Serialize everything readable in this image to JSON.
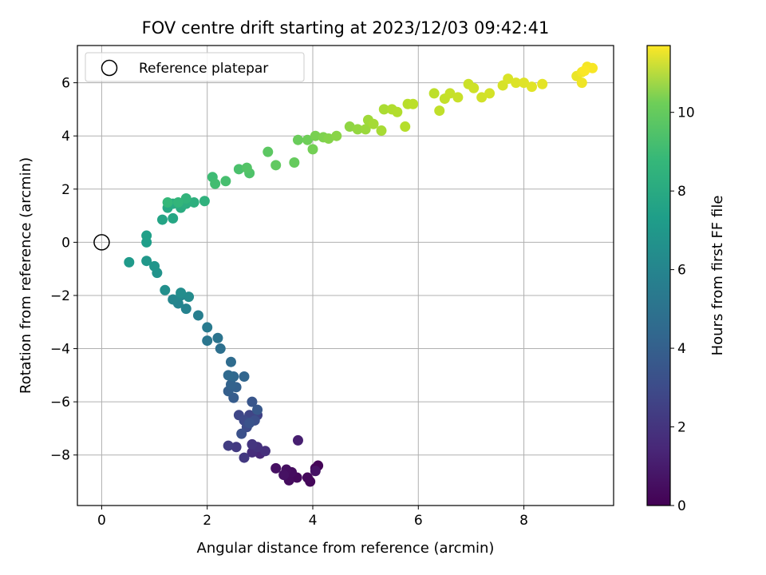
{
  "chart_data": {
    "type": "scatter",
    "title": "FOV centre drift starting at 2023/12/03 09:42:41",
    "xlabel": "Angular distance from reference (arcmin)",
    "ylabel": "Rotation from reference (arcmin)",
    "xlim": [
      -0.46,
      9.7
    ],
    "ylim": [
      -9.9,
      7.4
    ],
    "xticks": [
      0,
      2,
      4,
      6,
      8
    ],
    "yticks": [
      -8,
      -6,
      -4,
      -2,
      0,
      2,
      4,
      6
    ],
    "xtick_labels": [
      "0",
      "2",
      "4",
      "6",
      "8"
    ],
    "ytick_labels": [
      "−8",
      "−6",
      "−4",
      "−2",
      "0",
      "2",
      "4",
      "6"
    ],
    "grid": true,
    "legend": {
      "position": "top-left",
      "label": "Reference platepar"
    },
    "reference_point": {
      "x": 0,
      "y": 0
    },
    "colorbar": {
      "label": "Hours from first FF file",
      "min": 0,
      "max": 11.7,
      "ticks": [
        0,
        2,
        4,
        6,
        8,
        10
      ],
      "tick_labels": [
        "0",
        "2",
        "4",
        "6",
        "8",
        "10"
      ],
      "colormap": "viridis"
    },
    "series": [
      {
        "points": [
          [
            4.1,
            -8.4,
            0.1
          ],
          [
            4.05,
            -8.5,
            0.15
          ],
          [
            3.95,
            -9.0,
            0.2
          ],
          [
            3.9,
            -8.85,
            0.25
          ],
          [
            3.7,
            -8.85,
            0.3
          ],
          [
            3.55,
            -8.95,
            0.35
          ],
          [
            3.6,
            -8.65,
            0.4
          ],
          [
            3.5,
            -8.55,
            0.45
          ],
          [
            3.3,
            -8.5,
            0.5
          ],
          [
            3.45,
            -8.75,
            0.55
          ],
          [
            4.05,
            -8.6,
            0.6
          ],
          [
            3.72,
            -7.45,
            1.0
          ],
          [
            3.0,
            -7.95,
            1.3
          ],
          [
            2.85,
            -7.9,
            1.5
          ],
          [
            3.1,
            -7.85,
            1.6
          ],
          [
            2.95,
            -7.7,
            1.7
          ],
          [
            2.85,
            -7.6,
            1.8
          ],
          [
            2.7,
            -8.1,
            1.9
          ],
          [
            2.55,
            -7.7,
            2.0
          ],
          [
            2.4,
            -7.65,
            2.1
          ],
          [
            2.95,
            -6.5,
            2.3
          ],
          [
            2.8,
            -6.5,
            2.4
          ],
          [
            2.6,
            -6.5,
            2.5
          ],
          [
            2.7,
            -6.7,
            2.6
          ],
          [
            2.75,
            -6.95,
            2.7
          ],
          [
            2.9,
            -6.7,
            2.8
          ],
          [
            2.65,
            -7.2,
            2.9
          ],
          [
            2.8,
            -6.8,
            3.0
          ],
          [
            2.85,
            -6.0,
            3.1
          ],
          [
            2.95,
            -6.3,
            3.2
          ],
          [
            2.5,
            -5.85,
            3.4
          ],
          [
            2.4,
            -5.6,
            3.5
          ],
          [
            2.55,
            -5.45,
            3.6
          ],
          [
            2.45,
            -5.35,
            3.7
          ],
          [
            2.7,
            -5.05,
            3.8
          ],
          [
            2.5,
            -5.05,
            3.9
          ],
          [
            2.4,
            -5.0,
            4.0
          ],
          [
            2.45,
            -4.5,
            4.1
          ],
          [
            2.25,
            -4.0,
            4.3
          ],
          [
            2.2,
            -3.6,
            4.5
          ],
          [
            2.0,
            -3.7,
            4.6
          ],
          [
            2.0,
            -3.2,
            4.8
          ],
          [
            1.83,
            -2.75,
            5.0
          ],
          [
            1.6,
            -2.5,
            5.2
          ],
          [
            1.45,
            -2.3,
            5.3
          ],
          [
            1.35,
            -2.15,
            5.4
          ],
          [
            1.5,
            -2.0,
            5.5
          ],
          [
            1.65,
            -2.05,
            5.6
          ],
          [
            1.5,
            -1.9,
            5.7
          ],
          [
            1.2,
            -1.8,
            5.8
          ],
          [
            1.05,
            -1.15,
            6.0
          ],
          [
            1.0,
            -0.9,
            6.1
          ],
          [
            0.85,
            -0.7,
            6.2
          ],
          [
            0.52,
            -0.75,
            6.3
          ],
          [
            0.85,
            0.0,
            6.5
          ],
          [
            0.85,
            0.25,
            6.6
          ],
          [
            1.15,
            0.85,
            6.8
          ],
          [
            1.35,
            0.9,
            6.9
          ],
          [
            1.25,
            1.3,
            7.0
          ],
          [
            1.35,
            1.45,
            7.1
          ],
          [
            1.5,
            1.3,
            7.2
          ],
          [
            1.6,
            1.45,
            7.3
          ],
          [
            1.75,
            1.5,
            7.4
          ],
          [
            1.95,
            1.55,
            7.5
          ],
          [
            1.6,
            1.65,
            7.6
          ],
          [
            1.45,
            1.5,
            7.7
          ],
          [
            1.25,
            1.5,
            7.8
          ],
          [
            2.1,
            2.45,
            8.0
          ],
          [
            2.15,
            2.2,
            8.1
          ],
          [
            2.35,
            2.3,
            8.2
          ],
          [
            2.6,
            2.75,
            8.3
          ],
          [
            2.8,
            2.6,
            8.4
          ],
          [
            2.75,
            2.8,
            8.5
          ],
          [
            3.15,
            3.4,
            8.7
          ],
          [
            3.3,
            2.9,
            8.8
          ],
          [
            3.65,
            3.0,
            8.9
          ],
          [
            3.72,
            3.85,
            9.0
          ],
          [
            3.9,
            3.85,
            9.1
          ],
          [
            4.0,
            3.5,
            9.2
          ],
          [
            4.05,
            4.0,
            9.3
          ],
          [
            4.2,
            3.95,
            9.4
          ],
          [
            4.3,
            3.9,
            9.5
          ],
          [
            4.45,
            4.0,
            9.6
          ],
          [
            4.7,
            4.35,
            9.7
          ],
          [
            4.85,
            4.25,
            9.8
          ],
          [
            5.0,
            4.25,
            9.9
          ],
          [
            5.05,
            4.6,
            10.0
          ],
          [
            5.15,
            4.45,
            10.1
          ],
          [
            5.3,
            4.2,
            10.15
          ],
          [
            5.35,
            5.0,
            10.2
          ],
          [
            5.5,
            5.0,
            10.3
          ],
          [
            5.6,
            4.9,
            10.35
          ],
          [
            5.75,
            4.35,
            10.4
          ],
          [
            5.8,
            5.2,
            10.45
          ],
          [
            5.9,
            5.2,
            10.5
          ],
          [
            6.3,
            5.6,
            10.55
          ],
          [
            6.4,
            4.95,
            10.6
          ],
          [
            6.5,
            5.4,
            10.65
          ],
          [
            6.6,
            5.6,
            10.7
          ],
          [
            6.75,
            5.45,
            10.75
          ],
          [
            6.95,
            5.95,
            10.8
          ],
          [
            7.05,
            5.8,
            10.85
          ],
          [
            7.2,
            5.45,
            10.9
          ],
          [
            7.35,
            5.6,
            10.95
          ],
          [
            7.6,
            5.9,
            11.0
          ],
          [
            7.7,
            6.15,
            11.05
          ],
          [
            7.85,
            6.0,
            11.1
          ],
          [
            8.0,
            6.0,
            11.15
          ],
          [
            8.15,
            5.85,
            11.2
          ],
          [
            8.35,
            5.95,
            11.25
          ],
          [
            9.0,
            6.25,
            11.35
          ],
          [
            9.1,
            6.0,
            11.45
          ],
          [
            9.1,
            6.4,
            11.5
          ],
          [
            9.2,
            6.6,
            11.55
          ],
          [
            9.3,
            6.55,
            11.6
          ],
          [
            9.15,
            6.45,
            11.65
          ]
        ]
      }
    ]
  }
}
